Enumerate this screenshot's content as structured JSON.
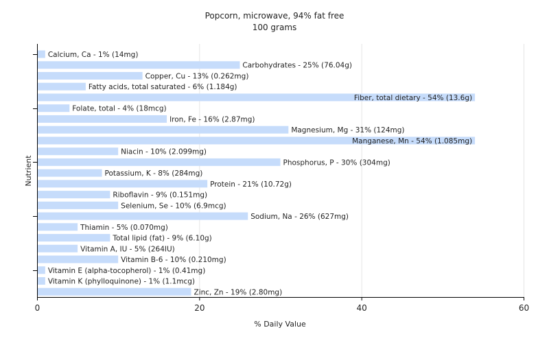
{
  "chart_data": {
    "type": "bar",
    "orientation": "horizontal",
    "title": "Popcorn, microwave, 94% fat free",
    "subtitle": "100 grams",
    "xlabel": "% Daily Value",
    "ylabel": "Nutrient",
    "xlim": [
      0,
      60
    ],
    "xticks": [
      0,
      20,
      40,
      60
    ],
    "grid": true,
    "bar_color": "#c6dcfb",
    "categories": [
      "Calcium, Ca",
      "Carbohydrates",
      "Copper, Cu",
      "Fatty acids, total saturated",
      "Fiber, total dietary",
      "Folate, total",
      "Iron, Fe",
      "Magnesium, Mg",
      "Manganese, Mn",
      "Niacin",
      "Phosphorus, P",
      "Potassium, K",
      "Protein",
      "Riboflavin",
      "Selenium, Se",
      "Sodium, Na",
      "Thiamin",
      "Total lipid (fat)",
      "Vitamin A, IU",
      "Vitamin B-6",
      "Vitamin E (alpha-tocopherol)",
      "Vitamin K (phylloquinone)",
      "Zinc, Zn"
    ],
    "values": [
      1,
      25,
      13,
      6,
      54,
      4,
      16,
      31,
      54,
      10,
      30,
      8,
      21,
      9,
      10,
      26,
      5,
      9,
      5,
      10,
      1,
      1,
      19
    ],
    "labels": [
      "Calcium, Ca - 1% (14mg)",
      "Carbohydrates - 25% (76.04g)",
      "Copper, Cu - 13% (0.262mg)",
      "Fatty acids, total saturated - 6% (1.184g)",
      "Fiber, total dietary - 54% (13.6g)",
      "Folate, total - 4% (18mcg)",
      "Iron, Fe - 16% (2.87mg)",
      "Magnesium, Mg - 31% (124mg)",
      "Manganese, Mn - 54% (1.085mg)",
      "Niacin - 10% (2.099mg)",
      "Phosphorus, P - 30% (304mg)",
      "Potassium, K - 8% (284mg)",
      "Protein - 21% (10.72g)",
      "Riboflavin - 9% (0.151mg)",
      "Selenium, Se - 10% (6.9mcg)",
      "Sodium, Na - 26% (627mg)",
      "Thiamin - 5% (0.070mg)",
      "Total lipid (fat) - 9% (6.10g)",
      "Vitamin A, IU - 5% (264IU)",
      "Vitamin B-6 - 10% (0.210mg)",
      "Vitamin E (alpha-tocopherol) - 1% (0.41mg)",
      "Vitamin K (phylloquinone) - 1% (1.1mcg)",
      "Zinc, Zn - 19% (2.80mg)"
    ]
  }
}
